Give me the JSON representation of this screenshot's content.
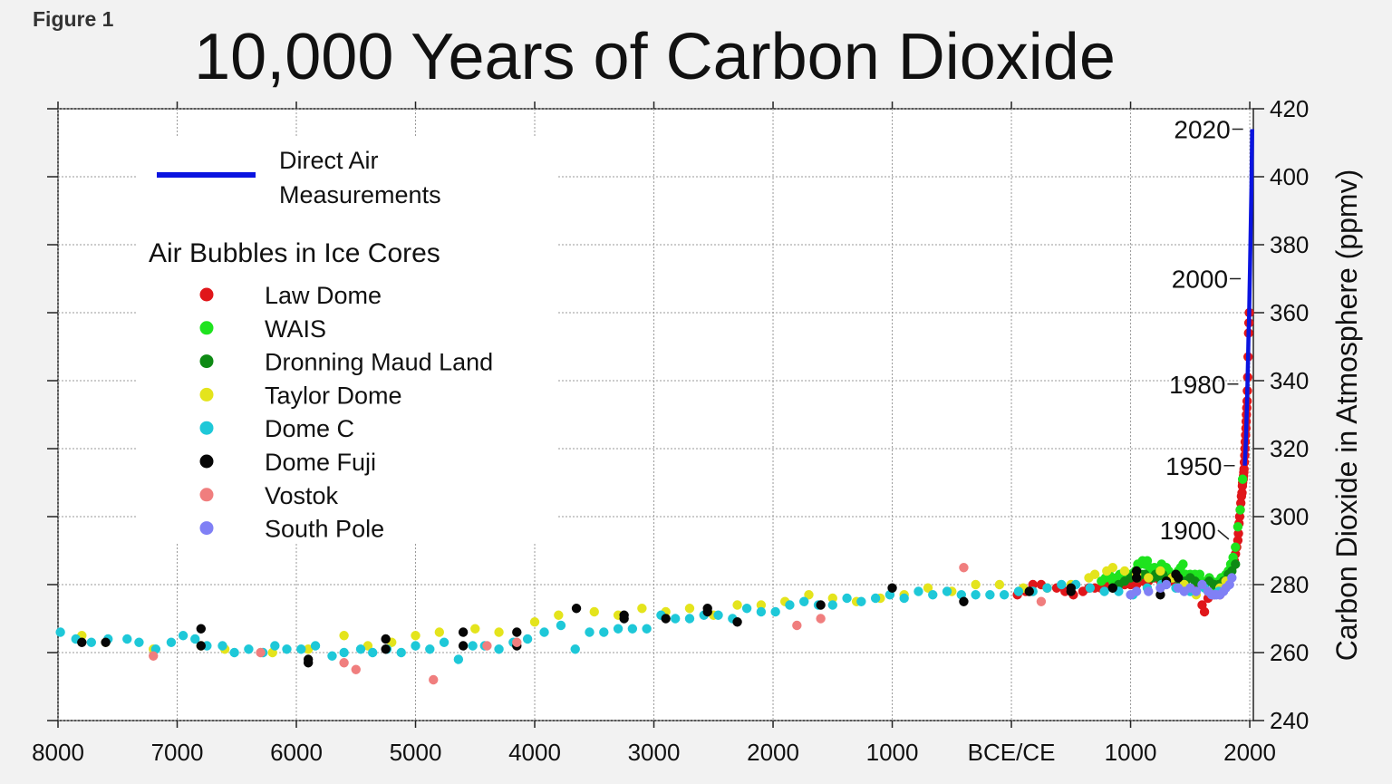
{
  "figure_label": "Figure 1",
  "chart_data": {
    "type": "scatter",
    "title": "10,000 Years of Carbon Dioxide",
    "xlabel": "",
    "ylabel": "Carbon Dioxide in Atmosphere (ppmv)",
    "xlim": [
      -8000,
      2030
    ],
    "ylim": [
      240,
      420
    ],
    "grid": true,
    "legend_position": "top-left",
    "x_ticks": [
      {
        "value": -8000,
        "label": "8000"
      },
      {
        "value": -7000,
        "label": "7000"
      },
      {
        "value": -6000,
        "label": "6000"
      },
      {
        "value": -5000,
        "label": "5000"
      },
      {
        "value": -4000,
        "label": "4000"
      },
      {
        "value": -3000,
        "label": "3000"
      },
      {
        "value": -2000,
        "label": "2000"
      },
      {
        "value": -1000,
        "label": "1000"
      },
      {
        "value": 0,
        "label": "BCE/CE"
      },
      {
        "value": 1000,
        "label": "1000"
      },
      {
        "value": 2000,
        "label": "2000"
      }
    ],
    "y_ticks": [
      {
        "value": 240,
        "label": "240"
      },
      {
        "value": 260,
        "label": "260"
      },
      {
        "value": 280,
        "label": "280"
      },
      {
        "value": 300,
        "label": "300"
      },
      {
        "value": 320,
        "label": "320"
      },
      {
        "value": 340,
        "label": "340"
      },
      {
        "value": 360,
        "label": "360"
      },
      {
        "value": 380,
        "label": "380"
      },
      {
        "value": 400,
        "label": "400"
      },
      {
        "value": 420,
        "label": "420"
      }
    ],
    "legend_group_title": "Air Bubbles in Ice Cores",
    "year_annotations": [
      {
        "label": "2020",
        "x": 2020,
        "y": 414
      },
      {
        "label": "2000",
        "x": 2000,
        "y": 370
      },
      {
        "label": "1980",
        "x": 1980,
        "y": 339
      },
      {
        "label": "1950",
        "x": 1950,
        "y": 315
      },
      {
        "label": "1900",
        "x": 1900,
        "y": 296
      }
    ],
    "line_series": {
      "name": "Direct Air Measurements",
      "color": "#0a14e0",
      "x": [
        1958,
        1962,
        1966,
        1970,
        1974,
        1978,
        1982,
        1986,
        1990,
        1994,
        1998,
        2002,
        2006,
        2010,
        2014,
        2018,
        2020
      ],
      "y": [
        315,
        318,
        321,
        325,
        330,
        335,
        341,
        347,
        354,
        358,
        366,
        373,
        381,
        389,
        397,
        408,
        414
      ]
    },
    "series": [
      {
        "name": "Law Dome",
        "color": "#e0161a",
        "x": [
          50,
          120,
          180,
          250,
          300,
          380,
          450,
          520,
          600,
          650,
          700,
          750,
          800,
          850,
          900,
          950,
          1000,
          1050,
          1100,
          1150,
          1200,
          1250,
          1300,
          1350,
          1400,
          1450,
          1500,
          1550,
          1600,
          1620,
          1650,
          1700,
          1750,
          1790,
          1810,
          1830,
          1850,
          1870,
          1880,
          1890,
          1900,
          1905,
          1910,
          1915,
          1920,
          1925,
          1930,
          1935,
          1938,
          1940,
          1942,
          1945,
          1948,
          1950,
          1952,
          1955,
          1958,
          1960,
          1962,
          1965,
          1968,
          1970,
          1972,
          1975,
          1978,
          1980,
          1983,
          1986,
          1990,
          1993,
          1996
        ],
        "y": [
          277,
          278,
          280,
          280,
          279,
          279,
          278,
          277,
          278,
          279,
          279,
          279,
          280,
          280,
          280,
          280,
          280,
          280,
          281,
          281,
          282,
          281,
          282,
          281,
          280,
          280,
          279,
          279,
          274,
          272,
          276,
          277,
          277,
          279,
          282,
          283,
          285,
          287,
          289,
          291,
          293,
          295,
          298,
          300,
          302,
          304,
          306,
          307,
          309,
          310,
          311,
          311,
          312,
          313,
          314,
          316,
          318,
          320,
          322,
          324,
          326,
          328,
          330,
          332,
          334,
          337,
          341,
          347,
          354,
          357,
          360
        ]
      },
      {
        "name": "WAIS",
        "color": "#1ee31e",
        "x": [
          755,
          790,
          820,
          850,
          880,
          910,
          940,
          970,
          1000,
          1020,
          1040,
          1060,
          1080,
          1100,
          1120,
          1140,
          1160,
          1180,
          1200,
          1220,
          1240,
          1260,
          1280,
          1300,
          1320,
          1340,
          1360,
          1380,
          1400,
          1420,
          1440,
          1460,
          1480,
          1500,
          1520,
          1540,
          1560,
          1580,
          1600,
          1620,
          1640,
          1660,
          1680,
          1700,
          1720,
          1740,
          1760,
          1780,
          1800,
          1820,
          1840,
          1860,
          1880,
          1900,
          1920,
          1940
        ],
        "y": [
          281,
          282,
          283,
          281,
          282,
          283,
          283,
          282,
          283,
          283,
          284,
          286,
          286,
          287,
          286,
          287,
          285,
          284,
          285,
          284,
          285,
          286,
          284,
          285,
          284,
          283,
          282,
          283,
          284,
          285,
          286,
          283,
          282,
          283,
          282,
          283,
          282,
          283,
          281,
          280,
          281,
          282,
          281,
          280,
          279,
          281,
          282,
          282,
          283,
          284,
          286,
          288,
          291,
          297,
          302,
          311
        ]
      },
      {
        "name": "Dronning Maud Land",
        "color": "#0e8a14",
        "x": [
          850,
          900,
          950,
          1000,
          1030,
          1060,
          1090,
          1120,
          1150,
          1180,
          1210,
          1240,
          1270,
          1300,
          1340,
          1380,
          1420,
          1460,
          1500,
          1540,
          1580,
          1620,
          1660,
          1700,
          1740,
          1780,
          1820,
          1850,
          1880
        ],
        "y": [
          279,
          280,
          281,
          282,
          283,
          282,
          283,
          283,
          282,
          282,
          283,
          282,
          283,
          281,
          282,
          282,
          281,
          281,
          282,
          281,
          280,
          280,
          281,
          280,
          280,
          281,
          283,
          284,
          286
        ]
      },
      {
        "name": "Taylor Dome",
        "color": "#e4e41c",
        "x": [
          -7800,
          -7600,
          -7200,
          -6800,
          -6600,
          -6200,
          -5900,
          -5600,
          -5400,
          -5200,
          -5000,
          -4800,
          -4500,
          -4300,
          -4000,
          -3800,
          -3500,
          -3300,
          -3100,
          -2900,
          -2700,
          -2500,
          -2300,
          -2100,
          -1900,
          -1700,
          -1500,
          -1300,
          -1100,
          -900,
          -700,
          -500,
          -300,
          -100,
          100,
          300,
          500,
          650,
          700,
          800,
          850,
          950,
          1050,
          1150,
          1250,
          1350,
          1450,
          1550,
          1650,
          1750,
          1800
        ],
        "y": [
          265,
          263,
          261,
          262,
          261,
          260,
          261,
          265,
          262,
          263,
          265,
          266,
          267,
          266,
          269,
          271,
          272,
          271,
          273,
          272,
          273,
          271,
          274,
          274,
          275,
          277,
          276,
          275,
          276,
          277,
          279,
          278,
          280,
          280,
          279,
          279,
          280,
          282,
          283,
          284,
          285,
          284,
          283,
          282,
          284,
          282,
          280,
          277,
          278,
          279,
          281
        ]
      },
      {
        "name": "Dome C",
        "color": "#1ec8d8",
        "x": [
          -7980,
          -7850,
          -7720,
          -7580,
          -7420,
          -7320,
          -7180,
          -7050,
          -6950,
          -6850,
          -6750,
          -6620,
          -6520,
          -6400,
          -6280,
          -6180,
          -6080,
          -5960,
          -5840,
          -5700,
          -5600,
          -5460,
          -5360,
          -5240,
          -5120,
          -5000,
          -4880,
          -4760,
          -4640,
          -4520,
          -4420,
          -4300,
          -4180,
          -4060,
          -3920,
          -3780,
          -3660,
          -3540,
          -3420,
          -3300,
          -3180,
          -3060,
          -2940,
          -2820,
          -2700,
          -2580,
          -2460,
          -2340,
          -2220,
          -2100,
          -1980,
          -1860,
          -1740,
          -1620,
          -1500,
          -1380,
          -1260,
          -1140,
          -1020,
          -900,
          -780,
          -660,
          -540,
          -420,
          -300,
          -180,
          -60,
          60,
          180,
          300,
          420,
          540,
          660,
          780,
          900,
          1020,
          1140,
          1260,
          1380,
          1500,
          1620,
          1740
        ],
        "y": [
          266,
          264,
          263,
          264,
          264,
          263,
          261,
          263,
          265,
          264,
          262,
          262,
          260,
          261,
          260,
          262,
          261,
          261,
          262,
          259,
          260,
          261,
          260,
          261,
          260,
          262,
          261,
          263,
          258,
          262,
          262,
          261,
          263,
          264,
          266,
          268,
          261,
          266,
          266,
          267,
          267,
          267,
          271,
          270,
          270,
          271,
          271,
          270,
          273,
          272,
          272,
          274,
          275,
          274,
          274,
          276,
          275,
          276,
          277,
          276,
          278,
          277,
          278,
          277,
          277,
          277,
          277,
          278,
          278,
          279,
          280,
          280,
          279,
          278,
          278,
          277,
          279,
          280,
          279,
          278,
          279,
          278
        ]
      },
      {
        "name": "Dome Fuji",
        "color": "#060606",
        "x": [
          -7800,
          -7600,
          -6800,
          -6800,
          -5900,
          -5900,
          -5250,
          -5250,
          -4600,
          -4600,
          -4150,
          -4150,
          -3650,
          -3250,
          -3250,
          -2900,
          -2550,
          -2550,
          -2300,
          -1600,
          -1000,
          -400,
          150,
          500,
          500,
          850,
          1050,
          1050,
          1250,
          1300,
          1380,
          1400
        ],
        "y": [
          263,
          263,
          267,
          262,
          258,
          257,
          264,
          261,
          266,
          262,
          266,
          262,
          273,
          271,
          270,
          270,
          273,
          272,
          269,
          274,
          279,
          275,
          278,
          279,
          278,
          279,
          284,
          282,
          277,
          281,
          283,
          282
        ]
      },
      {
        "name": "Vostok",
        "color": "#f07e7e",
        "x": [
          -7200,
          -6300,
          -5600,
          -5500,
          -4850,
          -4400,
          -4150,
          -1800,
          -1600,
          -400,
          250
        ],
        "y": [
          259,
          260,
          257,
          255,
          252,
          262,
          263,
          268,
          270,
          285,
          275
        ]
      },
      {
        "name": "South Pole",
        "color": "#8080f5",
        "x": [
          1000,
          1050,
          1150,
          1250,
          1300,
          1400,
          1450,
          1500,
          1550,
          1600,
          1650,
          1680,
          1700,
          1720,
          1750,
          1780,
          1800,
          1830,
          1850
        ],
        "y": [
          277,
          278,
          278,
          279,
          280,
          279,
          278,
          279,
          278,
          280,
          278,
          277,
          277,
          277,
          277,
          278,
          279,
          280,
          282
        ]
      }
    ]
  }
}
